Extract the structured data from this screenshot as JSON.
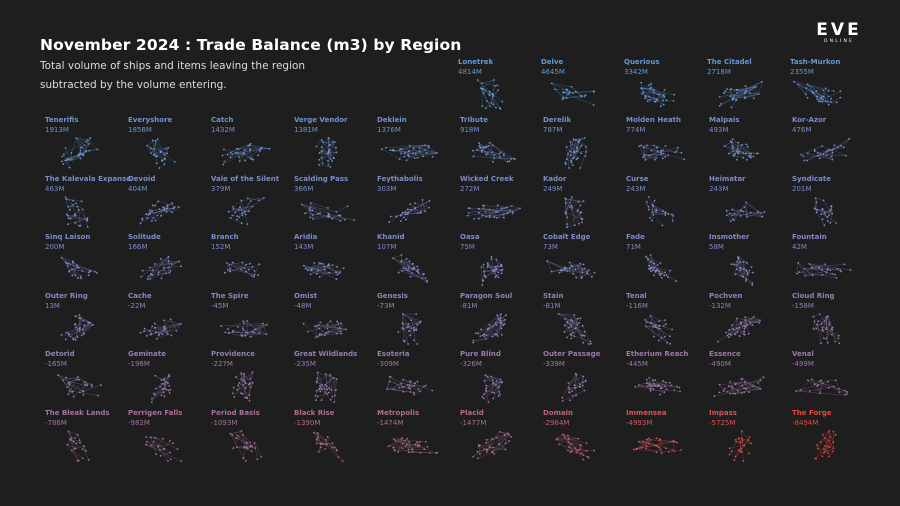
{
  "title": "November 2024 : Trade Balance (m3) by Region",
  "subtitle_line1": "Total volume of ships and items leaving the region",
  "subtitle_line2": "subtracted by the volume entering.",
  "logo": {
    "main": "EVE",
    "sub": "ONLINE"
  },
  "chart_data": {
    "type": "small-multiples-network",
    "title": "November 2024 : Trade Balance (m3) by Region",
    "subtitle": "Total volume of ships and items leaving the region subtracted by the volume entering.",
    "unit": "M m3",
    "color_scale": {
      "positive": "#5b9bd9",
      "neutral": "#8a86c2",
      "negative": "#e8453c"
    },
    "regions": [
      {
        "name": "Lonetrek",
        "label": "4814M",
        "value": 4814
      },
      {
        "name": "Delve",
        "label": "4645M",
        "value": 4645
      },
      {
        "name": "Querious",
        "label": "3342M",
        "value": 3342
      },
      {
        "name": "The Citadel",
        "label": "2718M",
        "value": 2718
      },
      {
        "name": "Tash-Murkon",
        "label": "2355M",
        "value": 2355
      },
      {
        "name": "Tenerifis",
        "label": "1913M",
        "value": 1913
      },
      {
        "name": "Everyshore",
        "label": "1858M",
        "value": 1858
      },
      {
        "name": "Catch",
        "label": "1432M",
        "value": 1432
      },
      {
        "name": "Verge Vendor",
        "label": "1381M",
        "value": 1381
      },
      {
        "name": "Deklein",
        "label": "1376M",
        "value": 1376
      },
      {
        "name": "Tribute",
        "label": "918M",
        "value": 918
      },
      {
        "name": "Derelik",
        "label": "787M",
        "value": 787
      },
      {
        "name": "Molden Heath",
        "label": "774M",
        "value": 774
      },
      {
        "name": "Malpais",
        "label": "493M",
        "value": 493
      },
      {
        "name": "Kor-Azor",
        "label": "476M",
        "value": 476
      },
      {
        "name": "The Kalevala Expanse",
        "label": "463M",
        "value": 463
      },
      {
        "name": "Devoid",
        "label": "404M",
        "value": 404
      },
      {
        "name": "Vale of the Silent",
        "label": "379M",
        "value": 379
      },
      {
        "name": "Scalding Pass",
        "label": "366M",
        "value": 366
      },
      {
        "name": "Feythabolis",
        "label": "303M",
        "value": 303
      },
      {
        "name": "Wicked Creek",
        "label": "272M",
        "value": 272
      },
      {
        "name": "Kador",
        "label": "249M",
        "value": 249
      },
      {
        "name": "Curse",
        "label": "243M",
        "value": 243
      },
      {
        "name": "Heimatar",
        "label": "243M",
        "value": 243
      },
      {
        "name": "Syndicate",
        "label": "201M",
        "value": 201
      },
      {
        "name": "Sinq Laison",
        "label": "200M",
        "value": 200
      },
      {
        "name": "Solitude",
        "label": "166M",
        "value": 166
      },
      {
        "name": "Branch",
        "label": "152M",
        "value": 152
      },
      {
        "name": "Aridia",
        "label": "143M",
        "value": 143
      },
      {
        "name": "Khanid",
        "label": "107M",
        "value": 107
      },
      {
        "name": "Oasa",
        "label": "75M",
        "value": 75
      },
      {
        "name": "Cobalt Edge",
        "label": "73M",
        "value": 73
      },
      {
        "name": "Fade",
        "label": "71M",
        "value": 71
      },
      {
        "name": "Insmother",
        "label": "58M",
        "value": 58
      },
      {
        "name": "Fountain",
        "label": "42M",
        "value": 42
      },
      {
        "name": "Outer Ring",
        "label": "13M",
        "value": 13
      },
      {
        "name": "Cache",
        "label": "-22M",
        "value": -22
      },
      {
        "name": "The Spire",
        "label": "-45M",
        "value": -45
      },
      {
        "name": "Omist",
        "label": "-48M",
        "value": -48
      },
      {
        "name": "Genesis",
        "label": "-73M",
        "value": -73
      },
      {
        "name": "Paragon Soul",
        "label": "-81M",
        "value": -81
      },
      {
        "name": "Stain",
        "label": "-81M",
        "value": -81
      },
      {
        "name": "Tenal",
        "label": "-116M",
        "value": -116
      },
      {
        "name": "Pochven",
        "label": "-132M",
        "value": -132
      },
      {
        "name": "Cloud Ring",
        "label": "-158M",
        "value": -158
      },
      {
        "name": "Detorid",
        "label": "-165M",
        "value": -165
      },
      {
        "name": "Geminate",
        "label": "-196M",
        "value": -196
      },
      {
        "name": "Providence",
        "label": "-227M",
        "value": -227
      },
      {
        "name": "Great Wildlands",
        "label": "-235M",
        "value": -235
      },
      {
        "name": "Esoteria",
        "label": "-309M",
        "value": -309
      },
      {
        "name": "Pure Blind",
        "label": "-326M",
        "value": -326
      },
      {
        "name": "Outer Passage",
        "label": "-339M",
        "value": -339
      },
      {
        "name": "Etherium Reach",
        "label": "-445M",
        "value": -445
      },
      {
        "name": "Essence",
        "label": "-490M",
        "value": -490
      },
      {
        "name": "Venal",
        "label": "-499M",
        "value": -499
      },
      {
        "name": "The Bleak Lands",
        "label": "-786M",
        "value": -786
      },
      {
        "name": "Perrigen Falls",
        "label": "-982M",
        "value": -982
      },
      {
        "name": "Period Basis",
        "label": "-1093M",
        "value": -1093
      },
      {
        "name": "Black Rise",
        "label": "-1390M",
        "value": -1390
      },
      {
        "name": "Metropolis",
        "label": "-1474M",
        "value": -1474
      },
      {
        "name": "Placid",
        "label": "-1477M",
        "value": -1477
      },
      {
        "name": "Domain",
        "label": "-2964M",
        "value": -2964
      },
      {
        "name": "Immensea",
        "label": "-4993M",
        "value": -4993
      },
      {
        "name": "Impass",
        "label": "-5725M",
        "value": -5725
      },
      {
        "name": "The Forge",
        "label": "-8494M",
        "value": -8494
      }
    ]
  }
}
